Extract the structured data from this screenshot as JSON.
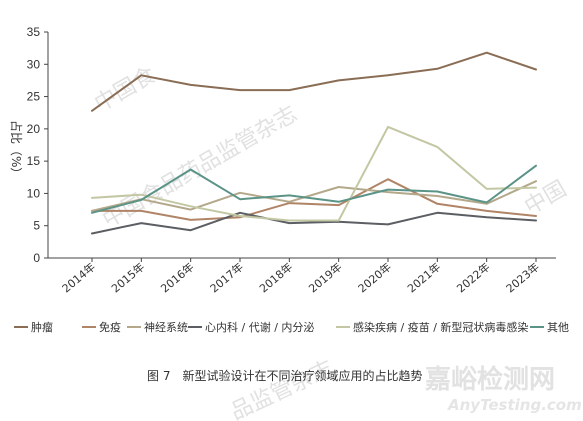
{
  "chart_data": {
    "type": "line",
    "ylabel": "占比（%）",
    "ylim": [
      0,
      35
    ],
    "yticks": [
      0,
      5,
      10,
      15,
      20,
      25,
      30,
      35
    ],
    "categories": [
      "2014年",
      "2015年",
      "2016年",
      "2017年",
      "2018年",
      "2019年",
      "2020年",
      "2021年",
      "2022年",
      "2023年"
    ],
    "series": [
      {
        "name": "肿瘤",
        "color": "#8a6d55",
        "values": [
          22.8,
          28.3,
          26.8,
          26.0,
          26.0,
          27.5,
          28.3,
          29.3,
          31.8,
          29.2
        ]
      },
      {
        "name": "免疫",
        "color": "#b08466",
        "values": [
          7.3,
          7.3,
          5.9,
          6.3,
          8.5,
          8.2,
          12.2,
          8.4,
          7.3,
          6.5
        ]
      },
      {
        "name": "神经系统",
        "color": "#b4a88a",
        "values": [
          7.3,
          9.1,
          7.5,
          10.1,
          8.7,
          11.0,
          10.2,
          9.6,
          8.4,
          11.9
        ]
      },
      {
        "name": "心内科 / 代谢 / 内分泌",
        "color": "#5b5f63",
        "values": [
          3.8,
          5.4,
          4.3,
          7.0,
          5.4,
          5.6,
          5.2,
          7.0,
          6.3,
          5.8
        ]
      },
      {
        "name": "感染疾病 / 疫苗 / 新型冠状病毒感染",
        "color": "#c3c7a3",
        "values": [
          9.3,
          9.8,
          8.0,
          6.5,
          5.8,
          5.8,
          20.3,
          17.2,
          10.7,
          10.9
        ]
      },
      {
        "name": "其他",
        "color": "#5b9487",
        "values": [
          7.0,
          9.0,
          13.7,
          9.1,
          9.7,
          8.7,
          10.6,
          10.3,
          8.6,
          14.3
        ]
      }
    ],
    "grid": false,
    "legend": "bottom"
  },
  "caption": "图 7　新型试验设计在不同治疗领域应用的占比趋势",
  "watermarks": [
    "中国食品药品监管杂志",
    "中国食",
    "中国",
    "品监管杂志"
  ],
  "brand": {
    "cn": "嘉峪检测网",
    "en": "AnyTesting.com"
  }
}
